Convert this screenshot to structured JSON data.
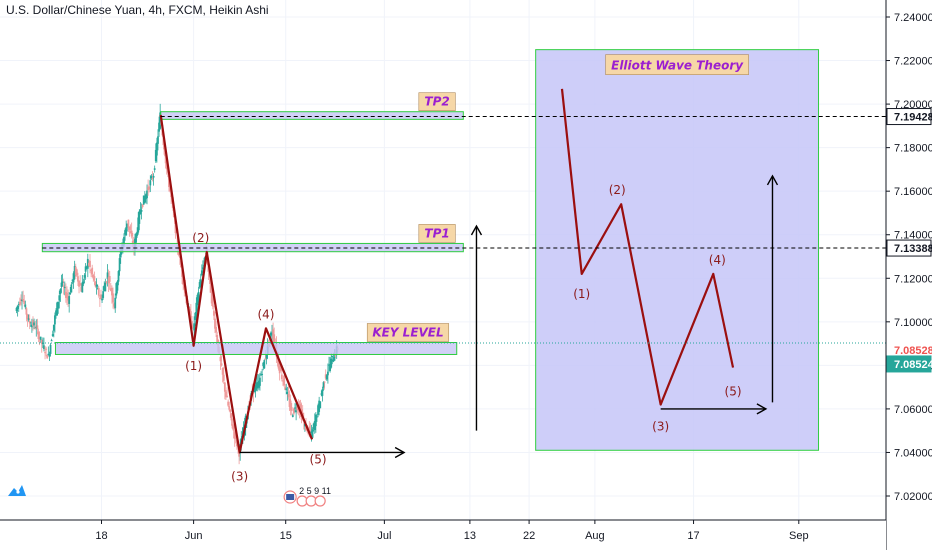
{
  "header": {
    "title": "U.S. Dollar/Chinese Yuan, 4h, FXCM, Heikin Ashi"
  },
  "colors": {
    "up": "#26a69a",
    "down": "#ef9a9a",
    "wave": "#9b0f0f",
    "zone_fill": "#c5c5f5",
    "zone_border": "#2ecc40",
    "tag_fill": "#f6d7a7",
    "tag_text": "#9b1fd0",
    "last_price": "#ef5350",
    "current_price": "#26a69a"
  },
  "icons": {
    "logo": "tradingview-logo-icon",
    "events": "us-flag-events-icon"
  },
  "chart_data": {
    "type": "candlestick",
    "symbol": "U.S. Dollar/Chinese Yuan",
    "interval": "4h",
    "source": "FXCM",
    "style": "Heikin Ashi",
    "ylim": [
      7.01,
      7.25
    ],
    "y_ticks": [
      "7.24000",
      "7.22000",
      "7.20000",
      "7.18000",
      "7.16000",
      "7.14000",
      "7.12000",
      "7.10000",
      "7.08000",
      "7.06000",
      "7.04000",
      "7.02000"
    ],
    "y_tick_values": [
      7.24,
      7.22,
      7.2,
      7.18,
      7.16,
      7.14,
      7.12,
      7.1,
      7.08,
      7.06,
      7.04,
      7.02
    ],
    "x_ticks": [
      "18",
      "Jun",
      "15",
      "Jul",
      "13",
      "22",
      "Aug",
      "17",
      "Sep"
    ],
    "x_tick_days": [
      18,
      32,
      46,
      61,
      74,
      83,
      93,
      108,
      124
    ],
    "xlim_days": [
      5,
      133
    ],
    "price_path": [
      [
        5,
        7.105
      ],
      [
        6,
        7.112
      ],
      [
        7,
        7.1
      ],
      [
        8,
        7.098
      ],
      [
        9,
        7.09
      ],
      [
        10,
        7.084
      ],
      [
        11,
        7.102
      ],
      [
        12,
        7.118
      ],
      [
        13,
        7.11
      ],
      [
        14,
        7.124
      ],
      [
        15,
        7.115
      ],
      [
        16,
        7.128
      ],
      [
        17,
        7.118
      ],
      [
        18,
        7.11
      ],
      [
        19,
        7.122
      ],
      [
        20,
        7.108
      ],
      [
        21,
        7.132
      ],
      [
        22,
        7.146
      ],
      [
        23,
        7.134
      ],
      [
        24,
        7.152
      ],
      [
        25,
        7.16
      ],
      [
        26,
        7.168
      ],
      [
        27,
        7.195
      ],
      [
        28,
        7.17
      ],
      [
        29,
        7.15
      ],
      [
        30,
        7.128
      ],
      [
        31,
        7.11
      ],
      [
        32,
        7.096
      ],
      [
        33,
        7.118
      ],
      [
        34,
        7.132
      ],
      [
        35,
        7.106
      ],
      [
        36,
        7.084
      ],
      [
        37,
        7.066
      ],
      [
        38,
        7.052
      ],
      [
        39,
        7.04
      ],
      [
        40,
        7.055
      ],
      [
        41,
        7.068
      ],
      [
        42,
        7.072
      ],
      [
        43,
        7.084
      ],
      [
        44,
        7.096
      ],
      [
        45,
        7.08
      ],
      [
        46,
        7.07
      ],
      [
        47,
        7.058
      ],
      [
        48,
        7.062
      ],
      [
        49,
        7.052
      ],
      [
        50,
        7.048
      ],
      [
        51,
        7.06
      ],
      [
        52,
        7.074
      ],
      [
        53,
        7.082
      ],
      [
        54,
        7.088
      ]
    ],
    "levels": {
      "tp2": 7.19428,
      "tp1": 7.13388,
      "key_level": 7.08852,
      "last_price": 7.08528,
      "current_price": 7.08524
    },
    "price_labels": {
      "tp2": "7.19428",
      "tp1": "7.13388",
      "last": "7.08528",
      "current": "7.08524"
    },
    "zones": [
      {
        "tag": "TP2",
        "x0": 27,
        "x1": 73,
        "y0": 7.193,
        "y1": 7.1965
      },
      {
        "tag": "TP1",
        "x0": 9,
        "x1": 73,
        "y0": 7.1322,
        "y1": 7.136
      },
      {
        "tag": "KEY LEVEL",
        "x0": 11,
        "x1": 72,
        "y0": 7.085,
        "y1": 7.0905
      }
    ],
    "wave_left": {
      "points": [
        [
          27,
          7.195
        ],
        [
          32,
          7.089
        ],
        [
          34,
          7.132
        ],
        [
          39,
          7.04
        ],
        [
          43,
          7.097
        ],
        [
          50,
          7.046
        ]
      ],
      "labels": [
        "(1)",
        "(2)",
        "(3)",
        "(4)",
        "(5)"
      ]
    },
    "wave_right": {
      "title": "Elliott Wave Theory",
      "box": {
        "x0": 84,
        "x1": 127,
        "y0": 7.041,
        "y1": 7.225
      },
      "points": [
        [
          88,
          7.207
        ],
        [
          91,
          7.122
        ],
        [
          97,
          7.154
        ],
        [
          103,
          7.062
        ],
        [
          111,
          7.122
        ],
        [
          114,
          7.079
        ]
      ],
      "labels": [
        "(1)",
        "(2)",
        "(3)",
        "(4)",
        "(5)"
      ]
    },
    "arrows": [
      {
        "from": [
          39,
          7.04
        ],
        "to": [
          64,
          7.04
        ]
      },
      {
        "from": [
          75,
          7.05
        ],
        "to": [
          75,
          7.144
        ]
      },
      {
        "from": [
          103,
          7.06
        ],
        "to": [
          119,
          7.06
        ]
      },
      {
        "from": [
          120,
          7.063
        ],
        "to": [
          120,
          7.167
        ]
      }
    ],
    "events": [
      "2",
      "5",
      "9",
      "11"
    ]
  }
}
